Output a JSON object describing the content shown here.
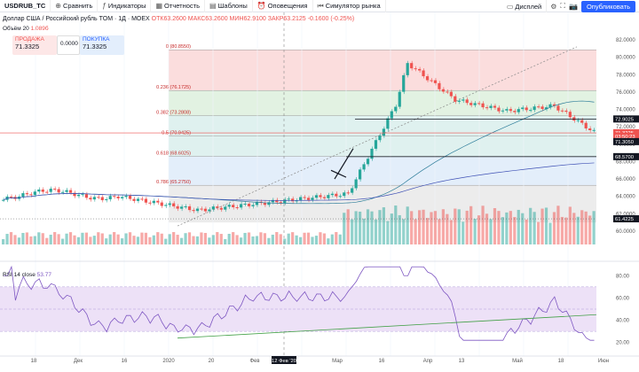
{
  "toolbar": {
    "symbol": "USDRUB_TC",
    "compare": "Сравнить",
    "indicators": "Индикаторы",
    "reports": "Отчетность",
    "templates": "Шаблоны",
    "alerts": "Оповещения",
    "replay": "Симулятор рынка",
    "layout": "Дисплей",
    "publish": "Опубликовать"
  },
  "legend": {
    "title": "Доллар США / Российский рубль TOM · 1Д · MOEX",
    "open": "ОТК63.2600",
    "high": "МАКС63.2600",
    "low": "МИН62.9100",
    "close": "ЗАКР63.2125",
    "change": "-0.1600 (-0.25%)",
    "volume_label": "Объём 20",
    "volume_value": "1.089б"
  },
  "trade": {
    "sell_label": "ПРОДАЖА",
    "sell_price": "71.3325",
    "qty": "0.0000",
    "buy_label": "ПОКУПКА",
    "buy_price": "71.3325"
  },
  "fib_levels": [
    {
      "label": "0 (80.8550)",
      "value": 80.855
    },
    {
      "label": "0.236 (76.1725)",
      "value": 76.1725
    },
    {
      "label": "0.382 (73.2808)",
      "value": 73.2808
    },
    {
      "label": "0.5 (70.9425)",
      "value": 70.9425
    },
    {
      "label": "0.618 (68.6025)",
      "value": 68.6025
    },
    {
      "label": "0.786 (65.2750)",
      "value": 65.275
    }
  ],
  "price_axis": [
    "82.0000",
    "80.0000",
    "78.0000",
    "76.0000",
    "74.0000",
    "72.0000",
    "70.0000",
    "68.0000",
    "66.0000",
    "64.0000",
    "62.0000",
    "60.0000"
  ],
  "price_tags": [
    {
      "text": "72.9025",
      "color": "#131722"
    },
    {
      "text": "71.3225",
      "color": "#ef5350"
    },
    {
      "text": "03:50:23",
      "color": "#ef5350"
    },
    {
      "text": "71.3050",
      "color": "#131722"
    },
    {
      "text": "68.5700",
      "color": "#131722"
    },
    {
      "text": "61.4225",
      "color": "#131722"
    }
  ],
  "rsi": {
    "label": "RSI 14 close",
    "value": "53.77",
    "axis": [
      "80.00",
      "60.00",
      "40.00",
      "20.00"
    ]
  },
  "time_axis": [
    "18",
    "Дек",
    "16",
    "2020",
    "20",
    "Фев",
    "12 Фев '20",
    "Мар",
    "16",
    "Апр",
    "13",
    "Май",
    "18",
    "Июн"
  ],
  "colors": {
    "up": "#26a69a",
    "down": "#ef5350",
    "fib_red": "#f9d2d2",
    "fib_green": "#d8eed8",
    "fib_teal": "#d4ece9",
    "fib_blue": "#d9e8f8",
    "fib_gray": "#e6e6e6",
    "rsi_band": "#ede1f7",
    "rsi_line": "#7e57c2"
  }
}
